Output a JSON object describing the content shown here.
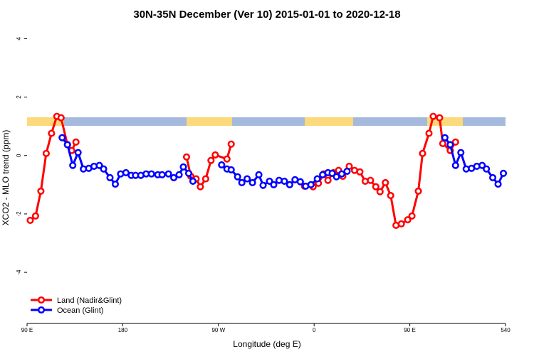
{
  "chart_data": {
    "type": "line",
    "title": "30N-35N December (Ver 10)   2015-01-01 to 2020-12-18",
    "xlabel": "Longitude (deg E)",
    "ylabel": "XCO2 - MLO trend (ppm)",
    "xlim": [
      90,
      540
    ],
    "ylim": [
      -5.75,
      4.35
    ],
    "xticks": [
      {
        "value": 90,
        "label": "90 E"
      },
      180,
      {
        "value": 270,
        "label": "90 W"
      },
      {
        "value": 360,
        "label": "0"
      },
      {
        "value": 450,
        "label": "90 E"
      },
      540
    ],
    "yticks": [
      4,
      2,
      0,
      -2,
      -4
    ],
    "legend": "bottom-left",
    "series": [
      {
        "name": "Land (Nadir&Glint)",
        "color": "#ff0000",
        "x": [
          93,
          98,
          103,
          108,
          113,
          118,
          122,
          128,
          132,
          136,
          null,
          240,
          244,
          249,
          253,
          258,
          263,
          267,
          278,
          282,
          null,
          351,
          359,
          364,
          369,
          373,
          378,
          383,
          387,
          393,
          398,
          403,
          408,
          413,
          418,
          422,
          427,
          432,
          437,
          442,
          448,
          452,
          458,
          462,
          468,
          472,
          478,
          481,
          488,
          493,
          496
        ],
        "values": [
          -2.22,
          -2.07,
          -1.22,
          0.07,
          0.76,
          1.34,
          1.29,
          0.37,
          0.17,
          0.46,
          null,
          -0.05,
          -0.71,
          -0.8,
          -1.07,
          -0.8,
          -0.17,
          0.02,
          -0.12,
          0.39,
          null,
          -1.05,
          -1.07,
          -0.95,
          -0.63,
          -0.85,
          -0.59,
          -0.51,
          -0.71,
          -0.37,
          -0.51,
          -0.56,
          -0.88,
          -0.85,
          -1.07,
          -1.24,
          -0.93,
          -1.37,
          -2.39,
          -2.34,
          -2.2,
          -2.07,
          -1.22,
          0.07,
          0.76,
          1.34,
          1.29,
          0.41,
          0.17,
          0.46,
          null
        ]
      },
      {
        "name": "Ocean (Glint)",
        "color": "#0000ff",
        "x": [
          123,
          128,
          133,
          138,
          143,
          148,
          153,
          158,
          162,
          168,
          173,
          178,
          183,
          188,
          192,
          197,
          202,
          207,
          213,
          217,
          223,
          228,
          233,
          237,
          242,
          246,
          null,
          273,
          278,
          282,
          288,
          292,
          297,
          302,
          308,
          312,
          318,
          322,
          327,
          332,
          337,
          342,
          347,
          352,
          357,
          363,
          368,
          373,
          377,
          381,
          386,
          391,
          null,
          483,
          488,
          493,
          498,
          503,
          508,
          513,
          518,
          522,
          528,
          533,
          538
        ],
        "values": [
          0.61,
          0.37,
          -0.34,
          0.1,
          -0.46,
          -0.44,
          -0.37,
          -0.34,
          -0.46,
          -0.76,
          -0.98,
          -0.63,
          -0.59,
          -0.68,
          -0.68,
          -0.68,
          -0.63,
          -0.63,
          -0.66,
          -0.66,
          -0.63,
          -0.76,
          -0.66,
          -0.39,
          -0.61,
          -0.88,
          null,
          -0.32,
          -0.46,
          -0.49,
          -0.73,
          -0.93,
          -0.8,
          -0.93,
          -0.66,
          -1.02,
          -0.88,
          -1.0,
          -0.85,
          -0.88,
          -1.0,
          -0.83,
          -0.9,
          -1.05,
          -1.0,
          -0.8,
          -0.66,
          -0.59,
          -0.61,
          -0.73,
          -0.63,
          -0.54,
          null,
          0.61,
          0.37,
          -0.34,
          0.1,
          -0.46,
          -0.44,
          -0.37,
          -0.34,
          -0.46,
          -0.76,
          -0.98,
          -0.61
        ]
      }
    ]
  }
}
